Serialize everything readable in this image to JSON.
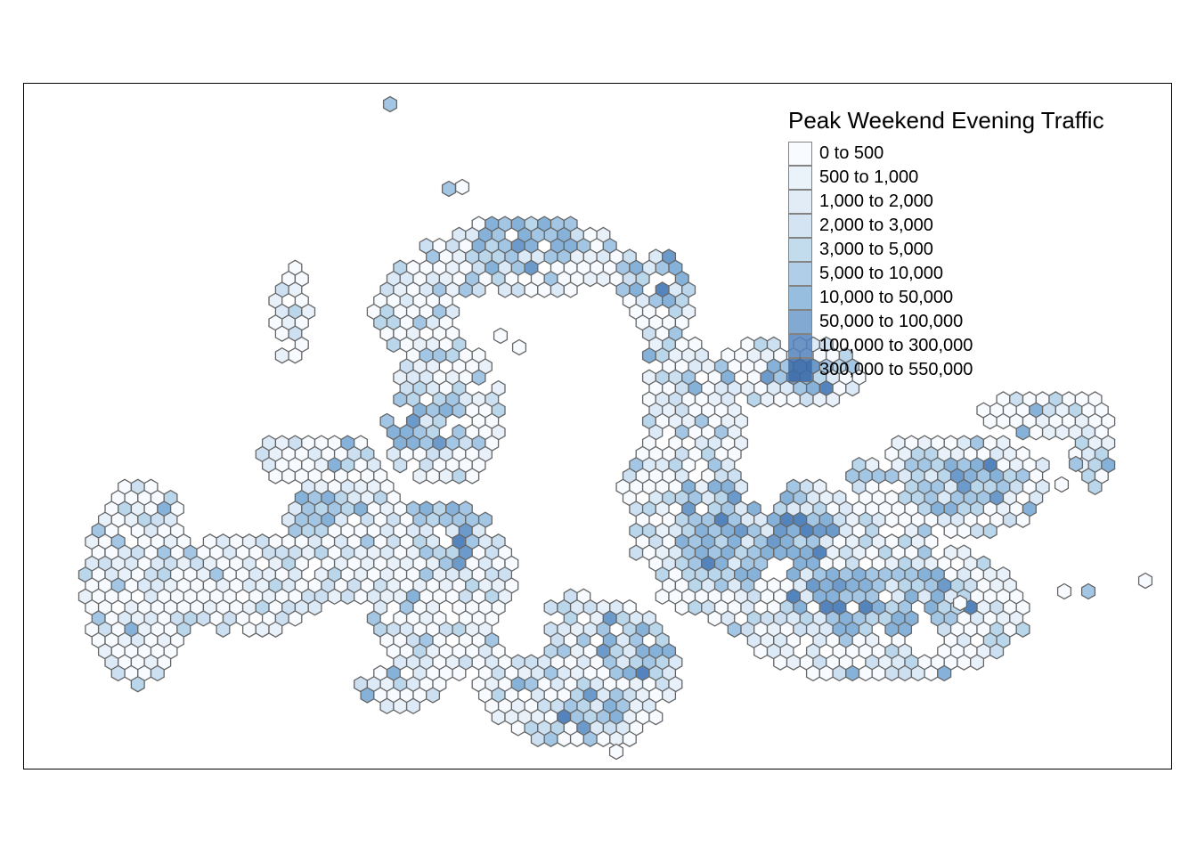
{
  "legend": {
    "title": "Peak Weekend Evening Traffic",
    "classes": [
      {
        "label": "0 to 500",
        "color": "#f7fbff"
      },
      {
        "label": "500 to 1,000",
        "color": "#e8f1fa"
      },
      {
        "label": "1,000 to 2,000",
        "color": "#dce9f6"
      },
      {
        "label": "2,000 to 3,000",
        "color": "#cde0f1"
      },
      {
        "label": "3,000 to 5,000",
        "color": "#b9d6eb"
      },
      {
        "label": "5,000 to 10,000",
        "color": "#a3c6e4"
      },
      {
        "label": "10,000 to 50,000",
        "color": "#86b2da"
      },
      {
        "label": "50,000 to 100,000",
        "color": "#6c9bcb"
      },
      {
        "label": "100,000 to 300,000",
        "color": "#5484bd"
      },
      {
        "label": "300,000 to 550,000",
        "color": "#3d6ba8"
      }
    ]
  },
  "style": {
    "hex_outline_color": "#666666",
    "frame_color": "#000000"
  }
}
